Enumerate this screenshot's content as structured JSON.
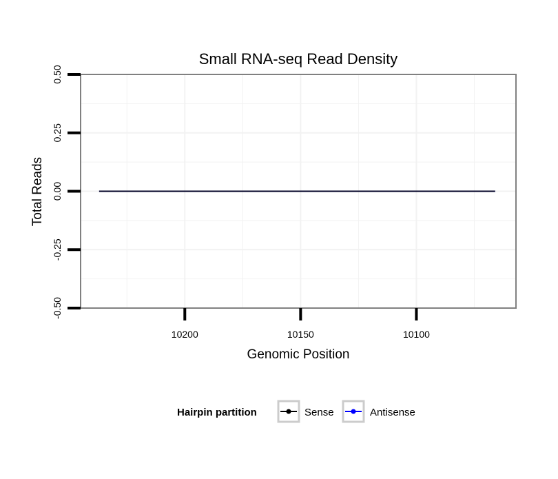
{
  "chart_data": {
    "type": "line",
    "title": "Small RNA-seq Read Density",
    "xlabel": "Genomic Position",
    "ylabel": "Total Reads",
    "x_reversed": true,
    "xlim": [
      10245,
      10057
    ],
    "ylim": [
      -0.5,
      0.5
    ],
    "x_ticks": [
      10200,
      10150,
      10100
    ],
    "x_tick_labels": [
      "10200",
      "10150",
      "10100"
    ],
    "y_ticks": [
      -0.5,
      -0.25,
      0,
      0.25,
      0.5
    ],
    "y_tick_labels": [
      "-0.50",
      "-0.25",
      "0.00",
      "0.25",
      "0.50"
    ],
    "grid": true,
    "series": [
      {
        "name": "Sense",
        "color": "#000000",
        "x": [
          10237,
          10066
        ],
        "y": [
          0,
          0
        ]
      },
      {
        "name": "Antisense",
        "color": "#0000ff",
        "x": [
          10237,
          10066
        ],
        "y": [
          0,
          0
        ]
      }
    ],
    "legend": {
      "title": "Hairpin partition",
      "position": "bottom",
      "items": [
        {
          "label": "Sense",
          "color": "#000000"
        },
        {
          "label": "Antisense",
          "color": "#0000ff"
        }
      ]
    }
  }
}
